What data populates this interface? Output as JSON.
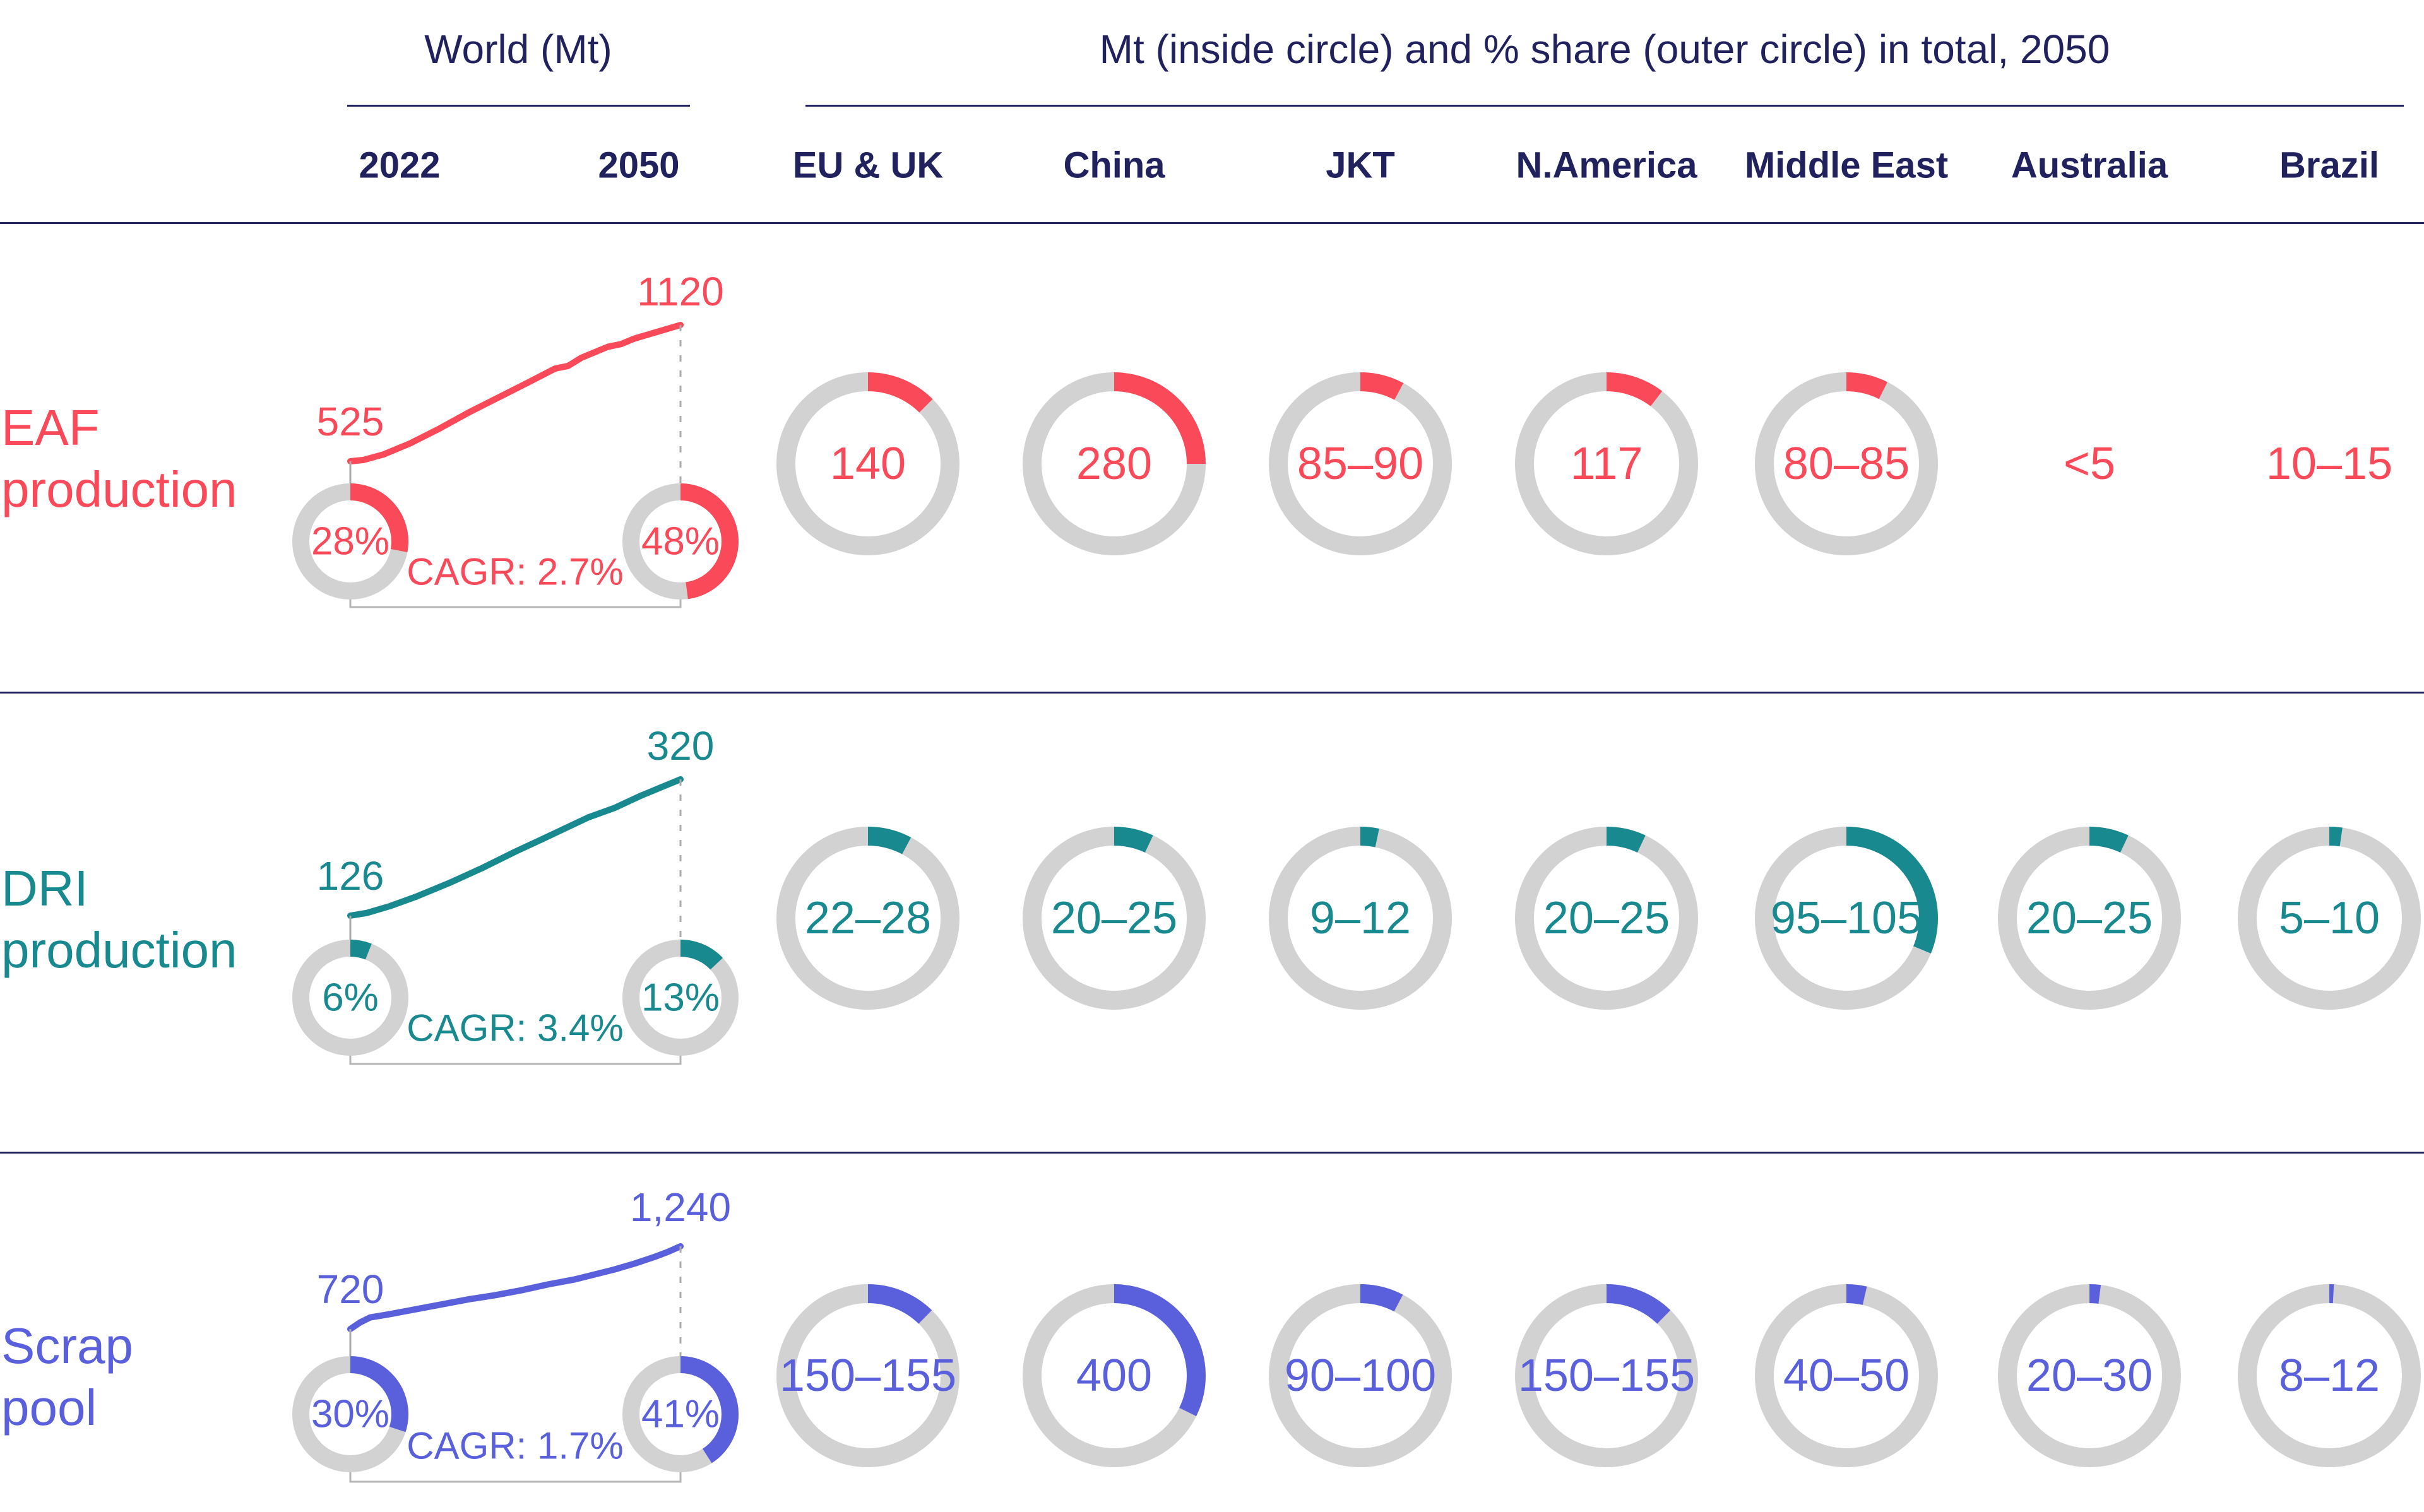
{
  "header": {
    "world_group": {
      "title": "World (Mt)",
      "years": [
        "2022",
        "2050"
      ]
    },
    "regions_group": {
      "title": "Mt (inside circle) and % share (outer circle) in total, 2050",
      "columns": [
        "EU & UK",
        "China",
        "JKT",
        "N.America",
        "Middle East",
        "Australia",
        "Brazil"
      ]
    }
  },
  "colors": {
    "navy": "#21215E",
    "red": "#FA4A59",
    "teal": "#17898F",
    "purple": "#5A60DB",
    "ring_gray": "#D2D2D2",
    "connector_gray": "#B6B6B6",
    "dash_gray": "#ABABAB"
  },
  "chart_data": {
    "type": "table",
    "unit": "Mt",
    "description": "World totals 2022 vs 2050 (line, % share donuts, CAGR) and regional 2050 values: Mt inside circle, % share of 2050 total as outer circle arc.",
    "rows": [
      {
        "id": "eaf-production",
        "label_lines": [
          "EAF",
          "production"
        ],
        "color_key": "red",
        "world": {
          "value_2022": 525,
          "label_2022": "525",
          "value_2050": 1120,
          "label_2050": "1120",
          "share_2022_pct": 28,
          "share_2022_label": "28%",
          "share_2050_pct": 48,
          "share_2050_label": "48%",
          "cagr_label": "CAGR: 2.7%",
          "trend": [
            [
              0,
              0
            ],
            [
              0.04,
              0.01
            ],
            [
              0.1,
              0.05
            ],
            [
              0.18,
              0.13
            ],
            [
              0.27,
              0.24
            ],
            [
              0.36,
              0.36
            ],
            [
              0.45,
              0.47
            ],
            [
              0.54,
              0.58
            ],
            [
              0.62,
              0.68
            ],
            [
              0.66,
              0.7
            ],
            [
              0.7,
              0.76
            ],
            [
              0.78,
              0.84
            ],
            [
              0.82,
              0.86
            ],
            [
              0.86,
              0.9
            ],
            [
              0.93,
              0.95
            ],
            [
              1,
              1
            ]
          ]
        },
        "regions": [
          {
            "region": "EU & UK",
            "label": "140",
            "share_pct": 12.5,
            "donut": true
          },
          {
            "region": "China",
            "label": "280",
            "share_pct": 25.0,
            "donut": true
          },
          {
            "region": "JKT",
            "label": "85–90",
            "share_pct": 7.8,
            "donut": true
          },
          {
            "region": "N.America",
            "label": "117",
            "share_pct": 10.4,
            "donut": true
          },
          {
            "region": "Middle East",
            "label": "80–85",
            "share_pct": 7.4,
            "donut": true
          },
          {
            "region": "Australia",
            "label": "<5",
            "share_pct": 0,
            "donut": false
          },
          {
            "region": "Brazil",
            "label": "10–15",
            "share_pct": 0,
            "donut": false
          }
        ]
      },
      {
        "id": "dri-production",
        "label_lines": [
          "DRI",
          "production"
        ],
        "color_key": "teal",
        "world": {
          "value_2022": 126,
          "label_2022": "126",
          "value_2050": 320,
          "label_2050": "320",
          "share_2022_pct": 6,
          "share_2022_label": "6%",
          "share_2050_pct": 13,
          "share_2050_label": "13%",
          "cagr_label": "CAGR: 3.4%",
          "trend": [
            [
              0,
              0
            ],
            [
              0.05,
              0.02
            ],
            [
              0.12,
              0.07
            ],
            [
              0.2,
              0.14
            ],
            [
              0.3,
              0.24
            ],
            [
              0.4,
              0.35
            ],
            [
              0.5,
              0.47
            ],
            [
              0.58,
              0.56
            ],
            [
              0.65,
              0.64
            ],
            [
              0.72,
              0.72
            ],
            [
              0.8,
              0.79
            ],
            [
              0.88,
              0.88
            ],
            [
              0.95,
              0.95
            ],
            [
              1,
              1
            ]
          ]
        },
        "regions": [
          {
            "region": "EU & UK",
            "label": "22–28",
            "share_pct": 7.8,
            "donut": true
          },
          {
            "region": "China",
            "label": "20–25",
            "share_pct": 7.0,
            "donut": true
          },
          {
            "region": "JKT",
            "label": "9–12",
            "share_pct": 3.3,
            "donut": true
          },
          {
            "region": "N.America",
            "label": "20–25",
            "share_pct": 7.0,
            "donut": true
          },
          {
            "region": "Middle East",
            "label": "95–105",
            "share_pct": 31.3,
            "donut": true
          },
          {
            "region": "Australia",
            "label": "20–25",
            "share_pct": 7.0,
            "donut": true
          },
          {
            "region": "Brazil",
            "label": "5–10",
            "share_pct": 2.3,
            "donut": true
          }
        ]
      },
      {
        "id": "scrap-pool",
        "label_lines": [
          "Scrap",
          "pool"
        ],
        "color_key": "purple",
        "world": {
          "value_2022": 720,
          "label_2022": "720",
          "value_2050": 1240,
          "label_2050": "1,240",
          "share_2022_pct": 30,
          "share_2022_label": "30%",
          "share_2050_pct": 41,
          "share_2050_label": "41%",
          "cagr_label": "CAGR: 1.7%",
          "trend": [
            [
              0,
              0
            ],
            [
              0.03,
              0.08
            ],
            [
              0.06,
              0.14
            ],
            [
              0.12,
              0.18
            ],
            [
              0.2,
              0.24
            ],
            [
              0.28,
              0.3
            ],
            [
              0.36,
              0.36
            ],
            [
              0.44,
              0.41
            ],
            [
              0.52,
              0.47
            ],
            [
              0.6,
              0.54
            ],
            [
              0.68,
              0.6
            ],
            [
              0.74,
              0.66
            ],
            [
              0.8,
              0.72
            ],
            [
              0.86,
              0.79
            ],
            [
              0.92,
              0.87
            ],
            [
              0.96,
              0.93
            ],
            [
              1,
              1
            ]
          ]
        },
        "regions": [
          {
            "region": "EU & UK",
            "label": "150–155",
            "share_pct": 12.3,
            "donut": true
          },
          {
            "region": "China",
            "label": "400",
            "share_pct": 32.3,
            "donut": true
          },
          {
            "region": "JKT",
            "label": "90–100",
            "share_pct": 7.7,
            "donut": true
          },
          {
            "region": "N.America",
            "label": "150–155",
            "share_pct": 12.3,
            "donut": true
          },
          {
            "region": "Middle East",
            "label": "40–50",
            "share_pct": 3.6,
            "donut": true
          },
          {
            "region": "Australia",
            "label": "20–30",
            "share_pct": 2.0,
            "donut": true
          },
          {
            "region": "Brazil",
            "label": "8–12",
            "share_pct": 0.8,
            "donut": true
          }
        ]
      }
    ]
  }
}
